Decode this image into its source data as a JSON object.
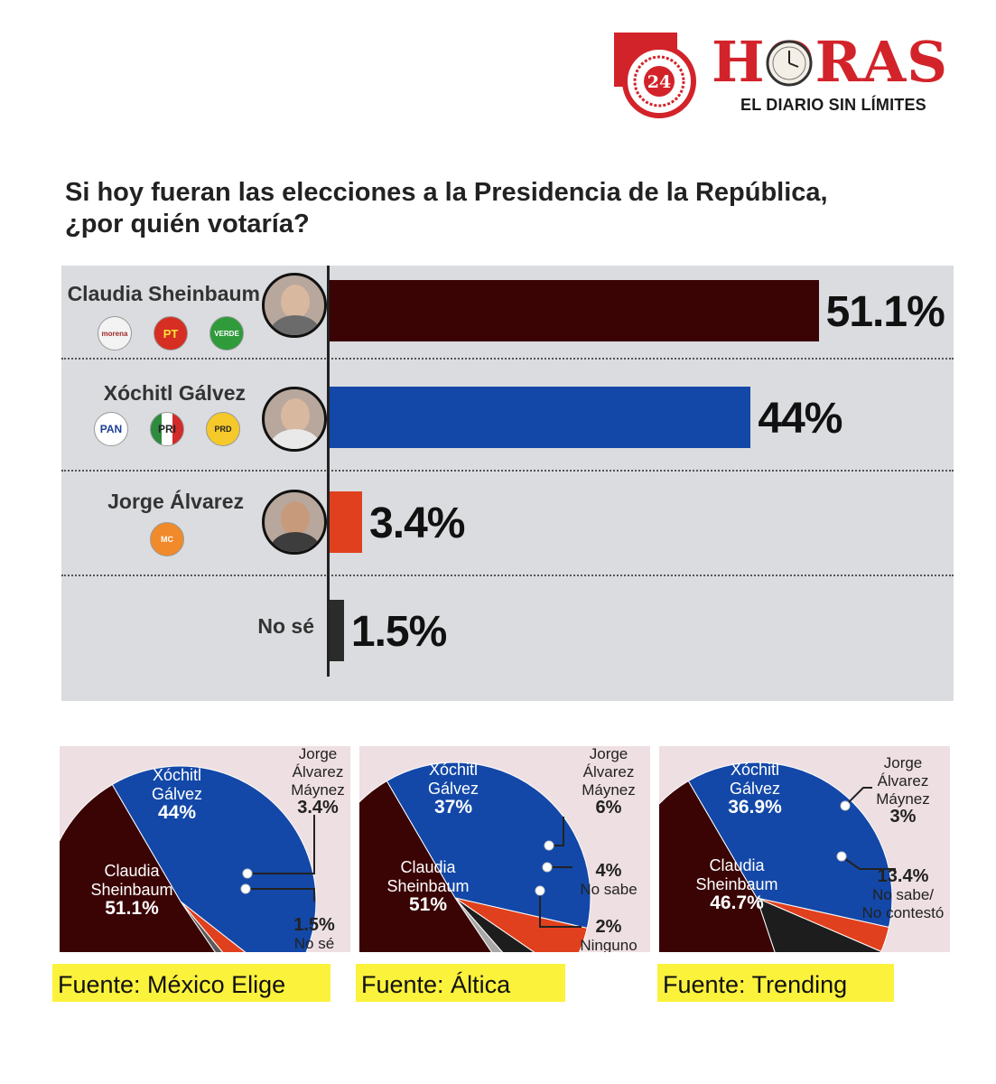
{
  "header": {
    "logo_number": "24",
    "logo_word": "HORAS",
    "tagline": "EL DIARIO SIN LÍMITES"
  },
  "question": {
    "line1": "Si hoy fueran las elecciones a la Presidencia de la República,",
    "line2": "¿por quién votaría?"
  },
  "candidates": [
    {
      "name": "Claudia Sheinbaum",
      "value_label": "51.1%",
      "parties": [
        "morena",
        "PT",
        "VERDE"
      ]
    },
    {
      "name": "Xóchitl Gálvez",
      "value_label": "44%",
      "parties": [
        "PAN",
        "PRI",
        "PRD"
      ]
    },
    {
      "name": "Jorge Álvarez",
      "value_label": "3.4%",
      "parties": [
        "MC"
      ]
    },
    {
      "name": "No sé",
      "value_label": "1.5%",
      "parties": []
    }
  ],
  "colors": {
    "sheinbaum": "#3a0405",
    "galvez": "#1348a8",
    "alvarez": "#e0401d",
    "nose": "#2b2b2b",
    "panel": "#dadcdf",
    "pie_bg": "#eedfe2",
    "source_bg": "#fbf23b",
    "brand_red": "#d3232a"
  },
  "chart_data": [
    {
      "type": "bar",
      "orientation": "horizontal",
      "title": "Si hoy fueran las elecciones a la Presidencia de la República, ¿por quién votaría?",
      "categories": [
        "Claudia Sheinbaum",
        "Xóchitl Gálvez",
        "Jorge Álvarez",
        "No sé"
      ],
      "values": [
        51.1,
        44,
        3.4,
        1.5
      ],
      "unit": "%"
    },
    {
      "type": "pie",
      "source": "Fuente: México Elige",
      "slices": [
        {
          "label_lines": [
            "Xóchitl",
            "Gálvez"
          ],
          "value_text": "44%",
          "value": 44
        },
        {
          "label_lines": [
            "Jorge",
            "Álvarez",
            "Máynez"
          ],
          "value_text": "3.4%",
          "value": 3.4
        },
        {
          "label_lines": [
            "No sé"
          ],
          "value_text": "1.5%",
          "value": 1.5
        },
        {
          "label_lines": [
            "Claudia",
            "Sheinbaum"
          ],
          "value_text": "51.1%",
          "value": 51.1
        }
      ]
    },
    {
      "type": "pie",
      "source": "Fuente: Áltica",
      "slices": [
        {
          "label_lines": [
            "Xóchitl",
            "Gálvez"
          ],
          "value_text": "37%",
          "value": 37
        },
        {
          "label_lines": [
            "Jorge",
            "Álvarez",
            "Máynez"
          ],
          "value_text": "6%",
          "value": 6
        },
        {
          "label_lines": [
            "No sabe"
          ],
          "value_text": "4%",
          "value": 4
        },
        {
          "label_lines": [
            "Ninguno"
          ],
          "value_text": "2%",
          "value": 2
        },
        {
          "label_lines": [
            "Claudia",
            "Sheinbaum"
          ],
          "value_text": "51%",
          "value": 51
        }
      ]
    },
    {
      "type": "pie",
      "source": "Fuente: Trending",
      "slices": [
        {
          "label_lines": [
            "Xóchitl",
            "Gálvez"
          ],
          "value_text": "36.9%",
          "value": 36.9
        },
        {
          "label_lines": [
            "Jorge",
            "Álvarez",
            "Máynez"
          ],
          "value_text": "3%",
          "value": 3
        },
        {
          "label_lines": [
            "No sabe/",
            "No contestó"
          ],
          "value_text": "13.4%",
          "value": 13.4
        },
        {
          "label_lines": [
            "Claudia",
            "Sheinbaum"
          ],
          "value_text": "46.7%",
          "value": 46.7
        }
      ]
    }
  ]
}
